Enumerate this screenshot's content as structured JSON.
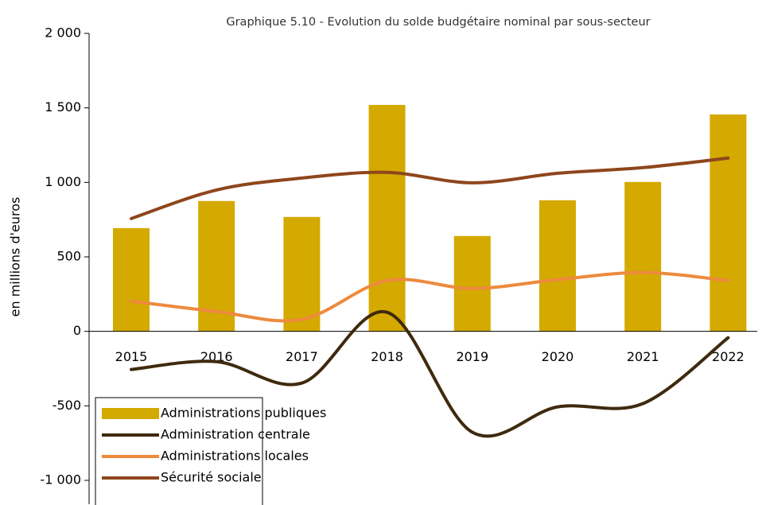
{
  "chart_data": {
    "type": "combo",
    "title": "Graphique 5.10 - Evolution du solde budgétaire nominal par sous-secteur",
    "y_label": "en millions d'euros",
    "categories": [
      "2015",
      "2016",
      "2017",
      "2018",
      "2019",
      "2020",
      "2021",
      "2022"
    ],
    "series": [
      {
        "name": "Administrations publiques",
        "type": "bar",
        "color": "#d4a900",
        "values": [
          693,
          875,
          768,
          1520,
          640,
          880,
          1003,
          1456
        ]
      },
      {
        "name": "Administration centrale",
        "type": "line",
        "smooth": true,
        "color": "#3f2a0e",
        "values": [
          -256,
          -203,
          -347,
          128,
          -677,
          -507,
          -485,
          -43
        ]
      },
      {
        "name": "Administrations locales",
        "type": "line",
        "smooth": true,
        "color": "#ed8a3e",
        "values": [
          203,
          133,
          80,
          341,
          288,
          347,
          395,
          341
        ]
      },
      {
        "name": "Sécurité sociale",
        "type": "line",
        "smooth": true,
        "color": "#8e461c",
        "values": [
          757,
          949,
          1029,
          1067,
          997,
          1061,
          1099,
          1163
        ]
      }
    ],
    "ylim": [
      -1000,
      2000
    ],
    "yticks": [
      {
        "value": -1000,
        "label": "-1 000"
      },
      -500,
      0,
      500,
      {
        "value": 1000,
        "label": "1 000"
      },
      {
        "value": 1500,
        "label": "1 500"
      },
      {
        "value": 2000,
        "label": "2 000"
      }
    ],
    "legend": "bottom-left"
  }
}
